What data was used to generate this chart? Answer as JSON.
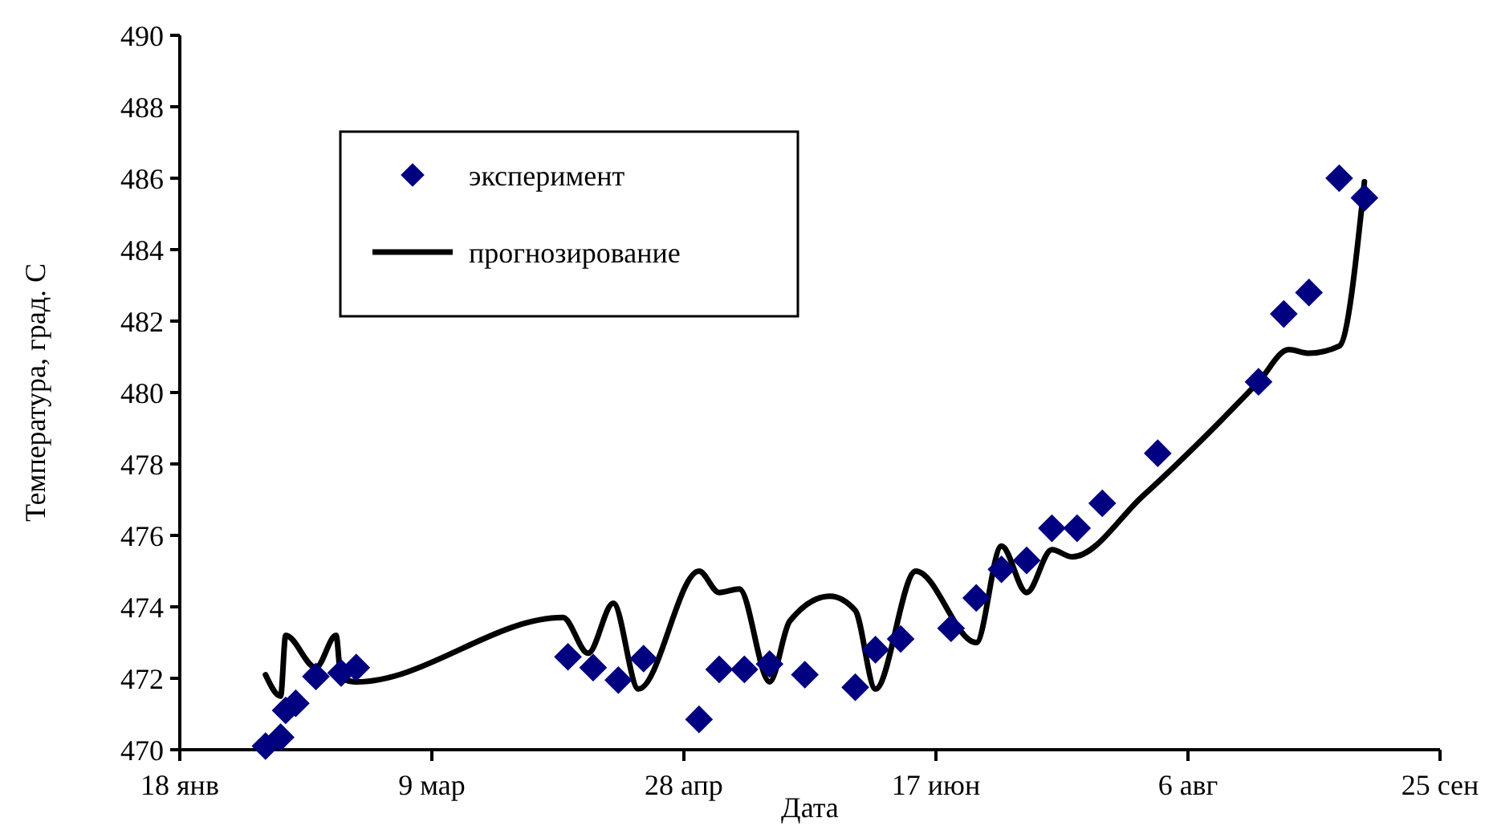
{
  "chart_data": {
    "type": "scatter",
    "xlabel": "Дата",
    "ylabel": "Температура, град. С",
    "xlim": [
      "--01-18",
      "--09-25"
    ],
    "xticks": [
      {
        "value": "--01-18",
        "label": "18 янв"
      },
      {
        "value": "--03-09",
        "label": "9 мар"
      },
      {
        "value": "--04-28",
        "label": "28 апр"
      },
      {
        "value": "--06-17",
        "label": "17 июн"
      },
      {
        "value": "--08-06",
        "label": "6 авг"
      },
      {
        "value": "--09-25",
        "label": "25 сен"
      }
    ],
    "ylim": [
      470,
      490
    ],
    "yticks": [
      470,
      472,
      474,
      476,
      478,
      480,
      482,
      484,
      486,
      488,
      490
    ],
    "grid": false,
    "legend": "top left",
    "series": [
      {
        "name": "эксперимент",
        "marker": "diamond",
        "color": "#000080",
        "x": [
          "--02-04",
          "--02-07",
          "--02-08",
          "--02-10",
          "--02-14",
          "--02-19",
          "--02-22",
          "--04-05",
          "--04-10",
          "--04-15",
          "--04-20",
          "--05-01",
          "--05-05",
          "--05-10",
          "--05-15",
          "--05-22",
          "--06-01",
          "--06-05",
          "--06-10",
          "--06-20",
          "--06-25",
          "--06-30",
          "--07-05",
          "--07-10",
          "--07-15",
          "--07-20",
          "--07-31",
          "--08-20",
          "--08-25",
          "--08-30",
          "--09-05",
          "--09-10"
        ],
        "values": [
          470.1,
          470.35,
          471.1,
          471.3,
          472.05,
          472.15,
          472.3,
          472.6,
          472.3,
          471.95,
          472.55,
          470.85,
          472.25,
          472.25,
          472.4,
          472.1,
          471.75,
          472.8,
          473.1,
          473.4,
          474.25,
          475.05,
          475.3,
          476.2,
          476.2,
          476.9,
          478.3,
          480.3,
          482.2,
          482.8,
          486,
          485.45
        ]
      },
      {
        "name": "прогнозирование",
        "type": "line",
        "marker": "none",
        "line_style": "solid",
        "color": "#000000",
        "x": [
          "--02-04",
          "--02-07",
          "--02-08",
          "--02-14",
          "--02-18",
          "--02-19",
          "--02-22",
          "--04-04",
          "--04-09",
          "--04-14",
          "--04-19",
          "--05-01",
          "--05-05",
          "--05-09",
          "--05-15",
          "--05-19",
          "--05-27",
          "--06-01",
          "--06-05",
          "--06-13",
          "--06-25",
          "--06-30",
          "--07-05",
          "--07-10",
          "--07-14",
          "--07-28",
          "--08-20",
          "--08-26",
          "--08-30",
          "--09-05",
          "--09-10"
        ],
        "values": [
          472.1,
          471.5,
          473.2,
          472.3,
          473.2,
          472.0,
          471.9,
          473.7,
          472.7,
          474.1,
          471.7,
          475.0,
          474.4,
          474.5,
          471.9,
          473.6,
          474.3,
          473.9,
          471.7,
          475.0,
          473.0,
          475.7,
          474.4,
          475.6,
          475.4,
          477.1,
          480.3,
          481.2,
          481.1,
          481.3,
          485.9
        ]
      }
    ]
  }
}
